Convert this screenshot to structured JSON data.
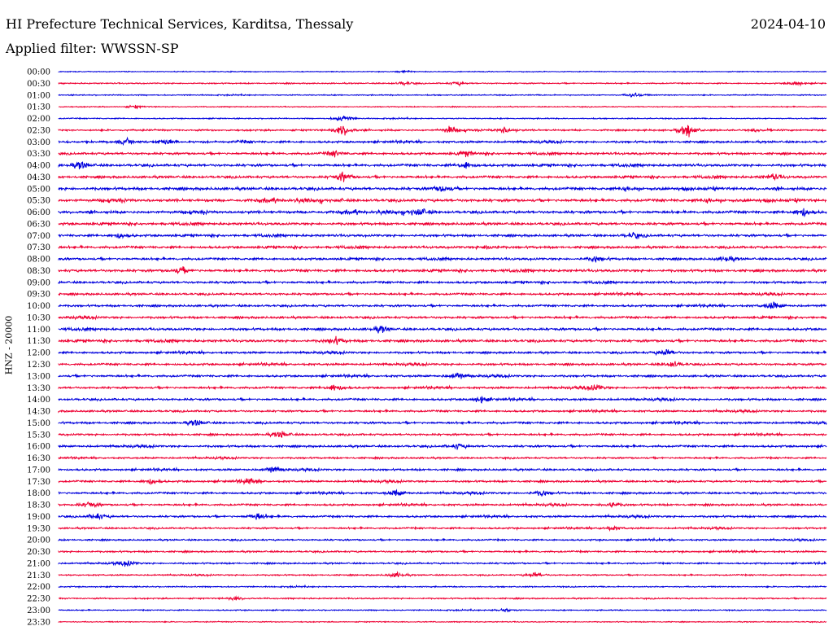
{
  "header": {
    "station": "HI Prefecture Technical Services, Karditsa, Thessaly",
    "date": "2024-04-10",
    "filter_label": "Applied filter: WWSSN-SP"
  },
  "chart_data": {
    "type": "line",
    "title": "HI Prefecture Technical Services, Karditsa, Thessaly",
    "channel_label": "HNZ - 20000",
    "row_labels": [
      "00:00",
      "00:30",
      "01:00",
      "01:30",
      "02:00",
      "02:30",
      "03:00",
      "03:30",
      "04:00",
      "04:30",
      "05:00",
      "05:30",
      "06:00",
      "06:30",
      "07:00",
      "07:30",
      "08:00",
      "08:30",
      "09:00",
      "09:30",
      "10:00",
      "10:30",
      "11:00",
      "11:30",
      "12:00",
      "12:30",
      "13:00",
      "13:30",
      "14:00",
      "14:30",
      "15:00",
      "15:30",
      "16:00",
      "16:30",
      "17:00",
      "17:30",
      "18:00",
      "18:30",
      "19:00",
      "19:30",
      "20:00",
      "20:30",
      "21:00",
      "21:30",
      "22:00",
      "22:30",
      "23:00",
      "23:30"
    ],
    "row_colors": [
      "#0000dd",
      "#ee0033"
    ],
    "row_noise_level": [
      0.1,
      0.25,
      0.2,
      0.15,
      0.2,
      0.45,
      0.6,
      0.65,
      0.75,
      0.7,
      0.85,
      0.85,
      0.8,
      0.75,
      0.7,
      0.7,
      0.65,
      0.75,
      0.65,
      0.6,
      0.6,
      0.65,
      0.7,
      0.75,
      0.6,
      0.6,
      0.6,
      0.6,
      0.6,
      0.55,
      0.6,
      0.55,
      0.6,
      0.45,
      0.55,
      0.55,
      0.55,
      0.55,
      0.55,
      0.45,
      0.4,
      0.45,
      0.4,
      0.3,
      0.25,
      0.3,
      0.2,
      0.15
    ],
    "events": [
      {
        "row": 0,
        "x": 0.45,
        "amp": 0.3
      },
      {
        "row": 1,
        "x": 0.45,
        "amp": 0.5
      },
      {
        "row": 1,
        "x": 0.52,
        "amp": 0.45
      },
      {
        "row": 1,
        "x": 0.96,
        "amp": 0.6
      },
      {
        "row": 2,
        "x": 0.75,
        "amp": 0.6
      },
      {
        "row": 3,
        "x": 0.1,
        "amp": 0.35
      },
      {
        "row": 4,
        "x": 0.37,
        "amp": 1.0
      },
      {
        "row": 5,
        "x": 0.37,
        "amp": 1.6
      },
      {
        "row": 5,
        "x": 0.51,
        "amp": 0.9
      },
      {
        "row": 5,
        "x": 0.58,
        "amp": 0.8
      },
      {
        "row": 5,
        "x": 0.82,
        "amp": 1.6
      },
      {
        "row": 6,
        "x": 0.09,
        "amp": 0.8
      },
      {
        "row": 6,
        "x": 0.14,
        "amp": 0.8
      },
      {
        "row": 7,
        "x": 0.36,
        "amp": 0.8
      },
      {
        "row": 7,
        "x": 0.53,
        "amp": 0.7
      },
      {
        "row": 8,
        "x": 0.03,
        "amp": 1.0
      },
      {
        "row": 8,
        "x": 0.53,
        "amp": 0.9
      },
      {
        "row": 9,
        "x": 0.37,
        "amp": 1.2
      },
      {
        "row": 9,
        "x": 0.93,
        "amp": 0.8
      },
      {
        "row": 10,
        "x": 0.5,
        "amp": 0.9
      },
      {
        "row": 12,
        "x": 0.47,
        "amp": 1.0
      },
      {
        "row": 12,
        "x": 0.97,
        "amp": 1.2
      },
      {
        "row": 14,
        "x": 0.08,
        "amp": 0.7
      },
      {
        "row": 14,
        "x": 0.75,
        "amp": 0.7
      },
      {
        "row": 15,
        "x": 0.56,
        "amp": 0.7
      },
      {
        "row": 16,
        "x": 0.7,
        "amp": 0.8
      },
      {
        "row": 16,
        "x": 0.87,
        "amp": 0.7
      },
      {
        "row": 17,
        "x": 0.16,
        "amp": 0.8
      },
      {
        "row": 20,
        "x": 0.93,
        "amp": 1.0
      },
      {
        "row": 22,
        "x": 0.42,
        "amp": 0.8
      },
      {
        "row": 23,
        "x": 0.36,
        "amp": 0.9
      },
      {
        "row": 24,
        "x": 0.79,
        "amp": 1.0
      },
      {
        "row": 25,
        "x": 0.8,
        "amp": 0.9
      },
      {
        "row": 26,
        "x": 0.52,
        "amp": 0.9
      },
      {
        "row": 27,
        "x": 0.36,
        "amp": 1.0
      },
      {
        "row": 27,
        "x": 0.7,
        "amp": 0.8
      },
      {
        "row": 28,
        "x": 0.55,
        "amp": 0.8
      },
      {
        "row": 30,
        "x": 0.18,
        "amp": 0.8
      },
      {
        "row": 31,
        "x": 0.29,
        "amp": 0.9
      },
      {
        "row": 32,
        "x": 0.52,
        "amp": 0.7
      },
      {
        "row": 34,
        "x": 0.28,
        "amp": 0.9
      },
      {
        "row": 35,
        "x": 0.12,
        "amp": 0.7
      },
      {
        "row": 35,
        "x": 0.25,
        "amp": 0.9
      },
      {
        "row": 36,
        "x": 0.44,
        "amp": 0.8
      },
      {
        "row": 36,
        "x": 0.63,
        "amp": 0.8
      },
      {
        "row": 37,
        "x": 0.04,
        "amp": 0.8
      },
      {
        "row": 37,
        "x": 0.72,
        "amp": 0.8
      },
      {
        "row": 38,
        "x": 0.05,
        "amp": 0.9
      },
      {
        "row": 38,
        "x": 0.26,
        "amp": 1.0
      },
      {
        "row": 39,
        "x": 0.72,
        "amp": 0.6
      },
      {
        "row": 42,
        "x": 0.09,
        "amp": 0.7
      },
      {
        "row": 43,
        "x": 0.44,
        "amp": 0.7
      },
      {
        "row": 43,
        "x": 0.62,
        "amp": 0.7
      },
      {
        "row": 45,
        "x": 0.23,
        "amp": 0.5
      },
      {
        "row": 46,
        "x": 0.58,
        "amp": 0.5
      }
    ]
  }
}
